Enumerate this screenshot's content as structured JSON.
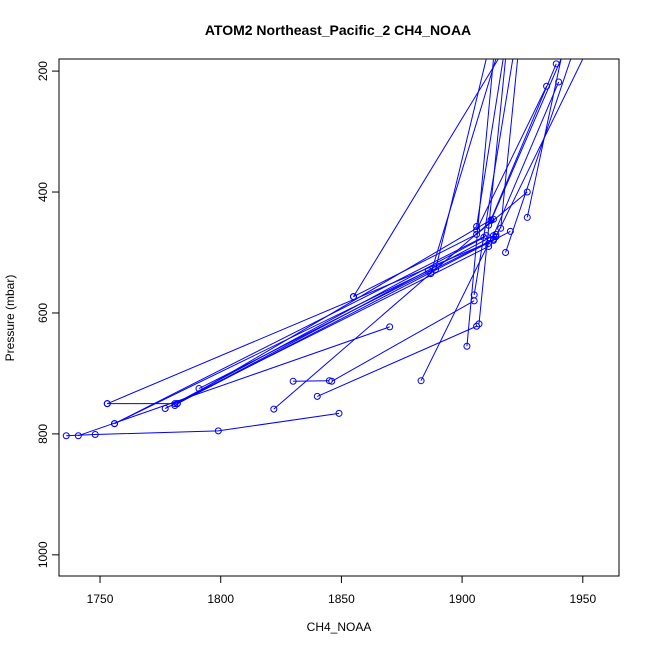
{
  "chart_data": {
    "type": "line",
    "title": "ATOM2 Northeast_Pacific_2 CH4_NOAA",
    "xlabel": "CH4_NOAA",
    "ylabel": "Pressure (mbar)",
    "xlim": [
      1733,
      1965
    ],
    "ylim": [
      1035,
      180
    ],
    "y_reversed": true,
    "grid": false,
    "series_color": "#0000ff",
    "xticks": [
      1750,
      1800,
      1850,
      1900,
      1950
    ],
    "yticks": [
      200,
      400,
      600,
      800,
      1000
    ],
    "segments": [
      [
        [
          1736,
          803
        ],
        [
          1748,
          801
        ],
        [
          1799,
          795
        ],
        [
          1849,
          766
        ]
      ],
      [
        [
          1741,
          803
        ],
        [
          1870,
          623
        ]
      ],
      [
        [
          1753,
          750
        ],
        [
          1781,
          750
        ],
        [
          1909,
          475
        ]
      ],
      [
        [
          1753,
          750
        ],
        [
          1913,
          480
        ]
      ],
      [
        [
          1756,
          783
        ],
        [
          1910,
          472
        ]
      ],
      [
        [
          1756,
          783
        ],
        [
          1886,
          530
        ]
      ],
      [
        [
          1777,
          758
        ],
        [
          1911,
          490
        ]
      ],
      [
        [
          1781,
          753
        ],
        [
          1912,
          446
        ]
      ],
      [
        [
          1782,
          750
        ],
        [
          1914,
          470
        ]
      ],
      [
        [
          1782,
          750
        ],
        [
          1920,
          465
        ]
      ],
      [
        [
          1791,
          725
        ],
        [
          1913,
          478
        ]
      ],
      [
        [
          1822,
          759
        ],
        [
          1913,
          445
        ]
      ],
      [
        [
          1830,
          713
        ],
        [
          1845,
          712
        ]
      ],
      [
        [
          1840,
          738
        ],
        [
          1906,
          622
        ]
      ],
      [
        [
          1846,
          713
        ],
        [
          1905,
          580
        ]
      ],
      [
        [
          1855,
          573
        ],
        [
          1906,
          470
        ],
        [
          1927,
          400
        ]
      ],
      [
        [
          1855,
          573
        ],
        [
          1915,
          180
        ]
      ],
      [
        [
          1883,
          712
        ],
        [
          1911,
          485
        ]
      ],
      [
        [
          1887,
          535
        ],
        [
          1914,
          180
        ]
      ],
      [
        [
          1889,
          528
        ],
        [
          1910,
          180
        ]
      ],
      [
        [
          1902,
          655
        ],
        [
          1913,
          180
        ]
      ],
      [
        [
          1905,
          570
        ],
        [
          1921,
          180
        ]
      ],
      [
        [
          1906,
          457
        ],
        [
          1917,
          180
        ]
      ],
      [
        [
          1906,
          463
        ],
        [
          1935,
          225
        ]
      ],
      [
        [
          1907,
          618
        ],
        [
          1918,
          180
        ]
      ],
      [
        [
          1911,
          455
        ],
        [
          1939,
          188
        ]
      ],
      [
        [
          1912,
          447
        ],
        [
          1941,
          180
        ]
      ],
      [
        [
          1913,
          472
        ],
        [
          1940,
          218
        ]
      ],
      [
        [
          1914,
          474
        ],
        [
          1950,
          180
        ]
      ],
      [
        [
          1916,
          460
        ],
        [
          1923,
          180
        ]
      ],
      [
        [
          1918,
          500
        ],
        [
          1945,
          180
        ]
      ],
      [
        [
          1927,
          442
        ],
        [
          1941,
          180
        ]
      ]
    ]
  }
}
